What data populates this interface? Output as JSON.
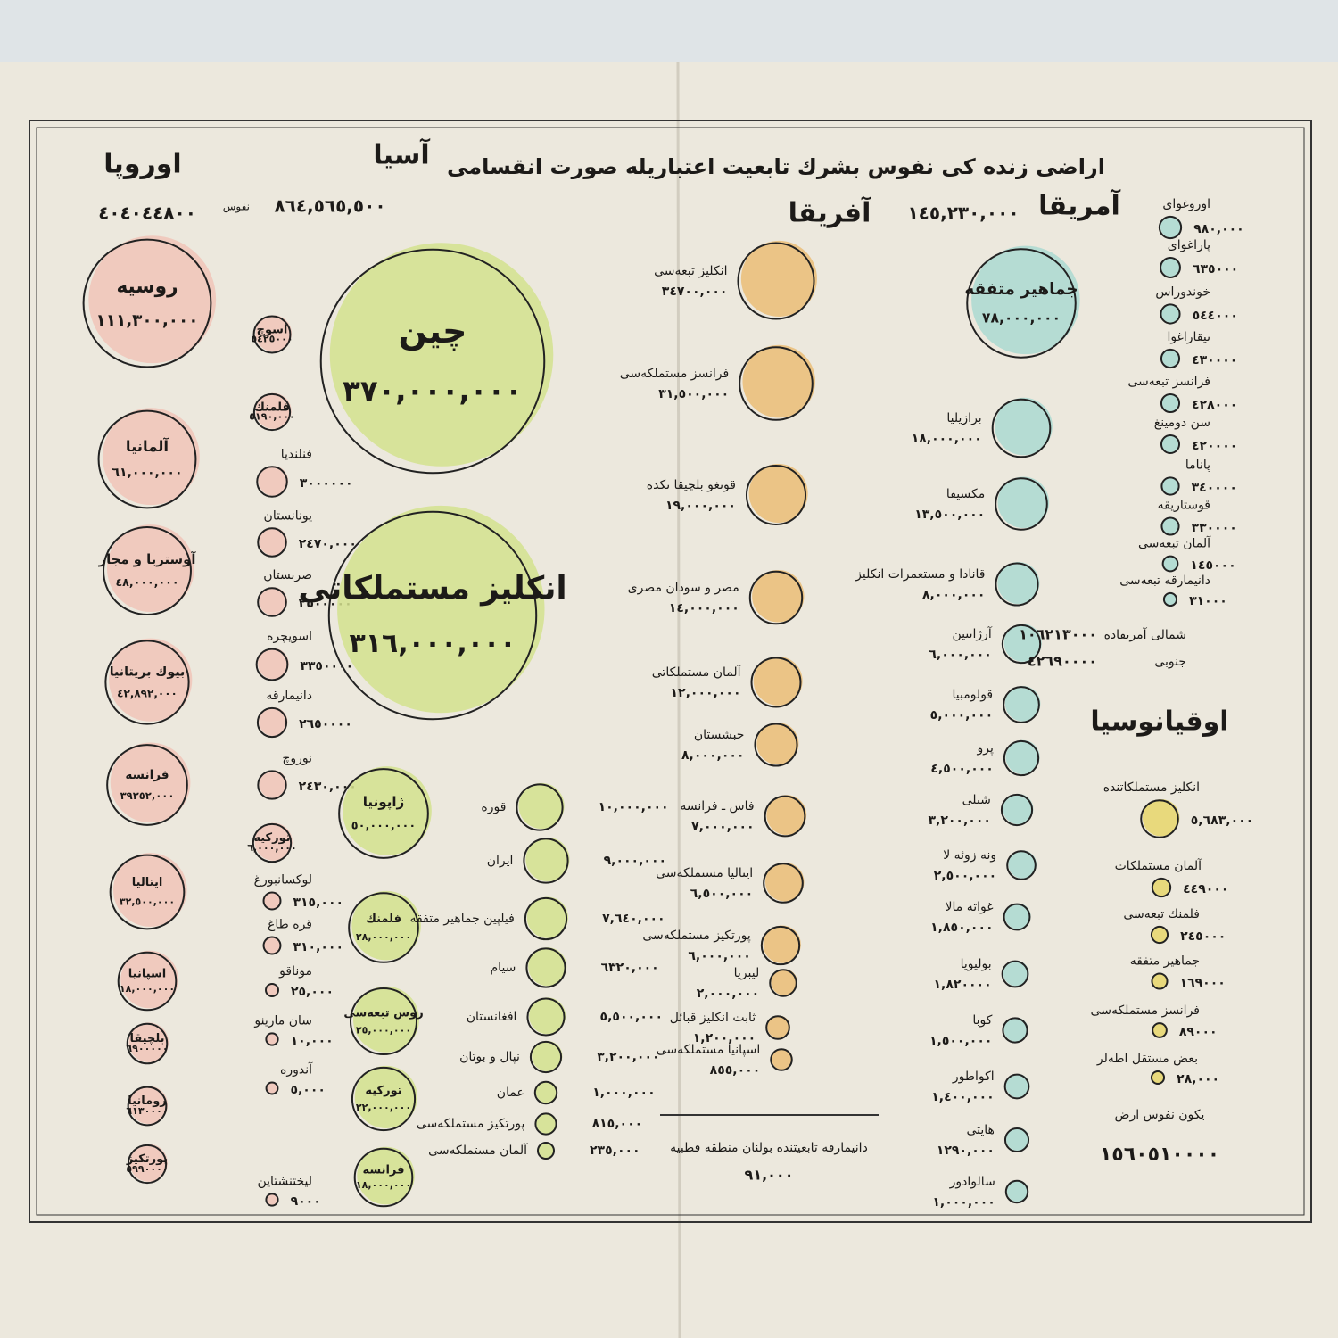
{
  "chart_data": {
    "type": "bubble",
    "title": "اراضی زنده کی نفوس بشرك تابعيت اعتباريله صورت انقسامی",
    "series": [
      {
        "name": "اوروپا",
        "color": "#f1c4b9",
        "total": 404044800,
        "total_label": "٤٠٤٠٤٤٨٠٠",
        "categories": [
          "روسيه",
          "آلمانيا",
          "آوستريا و مجار",
          "بيوك بريتانيا",
          "فرانسه",
          "ايتاليا",
          "اسپانيا",
          "بلچيقا",
          "رومانيا",
          "پورتكيز",
          "اسوچ",
          "فلمنك",
          "فنلنديا",
          "يونانستان",
          "صربستان",
          "اسويچره",
          "دانيمارقه",
          "نوروچ",
          "توركيه",
          "لوكسانبورغ",
          "قره طاغ",
          "موناقو",
          "سان مارينو",
          "آندوره",
          "ليختنشتاين"
        ],
        "values": [
          111300000,
          61000000,
          48000000,
          42892000,
          39252000,
          32500000,
          18000000,
          6900000,
          6130000,
          5990000,
          5425000,
          5190000,
          3000000,
          2470000,
          2500000,
          3350000,
          2650000,
          2430000,
          6000000,
          315000,
          310000,
          25000,
          10000,
          5000,
          9000
        ],
        "value_labels": [
          "١١١,٣٠٠,٠٠٠",
          "٦١,٠٠٠,٠٠٠",
          "٤٨,٠٠٠,٠٠٠",
          "٤٢,٨٩٢,٠٠٠",
          "٣٩٢٥٢,٠٠٠",
          "٣٢,٥٠٠,٠٠٠",
          "١٨,٠٠٠,٠٠٠",
          "٦٩٠٠٠٠٠",
          "٦١٣٠٠٠٠",
          "٥٩٩٠٠٠٠",
          "٥٤٢٥٠٠٠",
          "٥١٩٠,٠٠٠",
          "٣٠٠٠٠٠٠",
          "٢٤٧٠,٠٠٠",
          "٢٥٠٠٠٠٠",
          "٣٣٥٠٠٠٠",
          "٢٦٥٠٠٠٠",
          "٢٤٣٠,٠٠٠",
          "٦,٠٠٠,٠٠٠",
          "٣١٥,٠٠٠",
          "٣١٠,٠٠٠",
          "٢٥,٠٠٠",
          "١٠,٠٠٠",
          "٥,٠٠٠",
          "٩٠٠٠"
        ]
      },
      {
        "name": "آسيا",
        "color": "#d3e28e",
        "total": 864565500,
        "total_label": "٨٦٤,٥٦٥,٥٠٠",
        "total_unit": "نفوس",
        "categories": [
          "چين",
          "انكليز مستملكاتی",
          "ژاپونيا",
          "فلمنك",
          "روس تبعه‌سی",
          "توركيه",
          "فرانسه",
          "قوره",
          "ايران",
          "فيلپين جماهير متفقه",
          "سيام",
          "افغانستان",
          "نپال و بوتان",
          "عمان",
          "پورتكيز مستملكه‌سی",
          "آلمان مستملكه‌سی"
        ],
        "values": [
          370000000,
          316000000,
          50000000,
          28000000,
          25000000,
          22000000,
          18000000,
          10000000,
          9000000,
          7640000,
          6320000,
          5500000,
          3200000,
          1000000,
          815000,
          235000
        ],
        "value_labels": [
          "٣٧٠,٠٠٠,٠٠٠",
          "٣١٦,٠٠٠,٠٠٠",
          "٥٠,٠٠٠,٠٠٠",
          "٢٨,٠٠٠,٠٠٠",
          "٢٥,٠٠٠,٠٠٠",
          "٢٢,٠٠٠,٠٠٠",
          "١٨,٠٠٠,٠٠٠",
          "١٠,٠٠٠,٠٠٠",
          "٩,٠٠٠,٠٠٠",
          "٧,٦٤٠,٠٠٠",
          "٦٣٢٠,٠٠٠",
          "٥,٥٠٠,٠٠٠",
          "٣,٢٠٠,٠٠٠",
          "١,٠٠٠,٠٠٠",
          "٨١٥,٠٠٠",
          "٢٣٥,٠٠٠"
        ]
      },
      {
        "name": "آفريقا",
        "color": "#ebbd77",
        "total": 145230000,
        "total_label": "١٤٥,٢٣٠,٠٠٠",
        "categories": [
          "انكليز تبعه‌سی",
          "فرانسز مستملكه‌سی",
          "قونغو بلچيقا نكده",
          "مصر و سودان مصری",
          "آلمان مستملكاتی",
          "حبشستان",
          "فاس ـ فرانسه",
          "ايتاليا مستملكه‌سی",
          "پورتكيز مستملكه‌سی",
          "ليبريا",
          "ثابت انكليز قبائل",
          "اسپانيا مستملكه‌سی"
        ],
        "values": [
          34700000,
          31500000,
          19000000,
          14000000,
          12000000,
          8000000,
          7000000,
          6500000,
          6000000,
          2000000,
          1200000,
          855000
        ],
        "value_labels": [
          "٣٤٧٠٠,٠٠٠",
          "٣١,٥٠٠,٠٠٠",
          "١٩,٠٠٠,٠٠٠",
          "١٤,٠٠٠,٠٠٠",
          "١٢,٠٠٠,٠٠٠",
          "٨,٠٠٠,٠٠٠",
          "٧,٠٠٠,٠٠٠",
          "٦,٥٠٠,٠٠٠",
          "٦,٠٠٠,٠٠٠",
          "٢,٠٠٠,٠٠٠",
          "١,٢٠٠,٠٠٠",
          "٨٥٥,٠٠٠"
        ]
      },
      {
        "name": "آمريقا",
        "color": "#abd9d1",
        "categories": [
          "جماهير متفقه",
          "برازيليا",
          "مكسيقا",
          "قانادا و مستعمرات انكليز",
          "آرژانتين",
          "قولومبيا",
          "پرو",
          "شيلی",
          "ونه زوئه لا",
          "غواته مالا",
          "بوليويا",
          "كوبا",
          "اكواطور",
          "هايتی",
          "سالوادور",
          "اوروغوای",
          "پاراغوای",
          "خوندوراس",
          "نيقاراغوا",
          "فرانسز تبعه‌سی",
          "سن دومينغ",
          "پاناما",
          "قوستاريقه",
          "آلمان تبعه‌سی",
          "دانيمارقه تبعه‌سی"
        ],
        "values": [
          78000000,
          18000000,
          13500000,
          8000000,
          6000000,
          5000000,
          4500000,
          3200000,
          2500000,
          1850000,
          1820000,
          1500000,
          1400000,
          1290000,
          1000000,
          980000,
          635000,
          544000,
          430000,
          428000,
          420000,
          340000,
          330000,
          145000,
          31000
        ],
        "value_labels": [
          "٧٨,٠٠٠,٠٠٠",
          "١٨,٠٠٠,٠٠٠",
          "١٣,٥٠٠,٠٠٠",
          "٨,٠٠٠,٠٠٠",
          "٦,٠٠٠,٠٠٠",
          "٥,٠٠٠,٠٠٠",
          "٤,٥٠٠,٠٠٠",
          "٣,٢٠٠,٠٠٠",
          "٢,٥٠٠,٠٠٠",
          "١,٨٥٠,٠٠٠",
          "١,٨٢٠٠٠٠",
          "١,٥٠٠,٠٠٠",
          "١,٤٠٠,٠٠٠",
          "١٢٩٠,٠٠٠",
          "١,٠٠٠,٠٠٠",
          "٩٨٠,٠٠٠",
          "٦٣٥٠٠٠",
          "٥٤٤٠٠٠",
          "٤٣٠٠٠٠",
          "٤٢٨٠٠٠",
          "٤٢٠٠٠٠",
          "٣٤٠٠٠٠",
          "٣٣٠٠٠٠",
          "١٤٥٠٠٠",
          "٣١٠٠٠"
        ]
      },
      {
        "name": "اوقيانوسيا",
        "color": "#e7d66b",
        "categories": [
          "انكليز مستملكاتنده",
          "آلمان مستملكات",
          "فلمنك تبعه‌سی",
          "جماهير متفقه",
          "فرانسز مستملكه‌سی",
          "بعض مستقل اطه‌لر"
        ],
        "values": [
          5683000,
          449000,
          245000,
          169000,
          89000,
          28000
        ],
        "value_labels": [
          "٥,٦٨٣,٠٠٠",
          "٤٤٩٠٠٠",
          "٢٤٥٠٠٠",
          "١٦٩٠٠٠",
          "٨٩٠٠٠",
          "٢٨,٠٠٠"
        ]
      }
    ],
    "notes": [
      {
        "text": "شمالی آمريقاده",
        "value": 106213000,
        "value_label": "١٠٦٢١٣٠٠٠"
      },
      {
        "text": "جنوبی",
        "value": 42690000,
        "value_label": "٤٢٦٩٠٠٠٠"
      },
      {
        "text": "دانيمارقه تابعيتنده بولنان منطقه قطبيه",
        "value": 91000,
        "value_label": "٩١,٠٠٠"
      },
      {
        "text": "يكون نفوس ارض",
        "value": 1560510000,
        "value_label": "١٥٦٠٥١٠٠٠٠"
      }
    ]
  }
}
